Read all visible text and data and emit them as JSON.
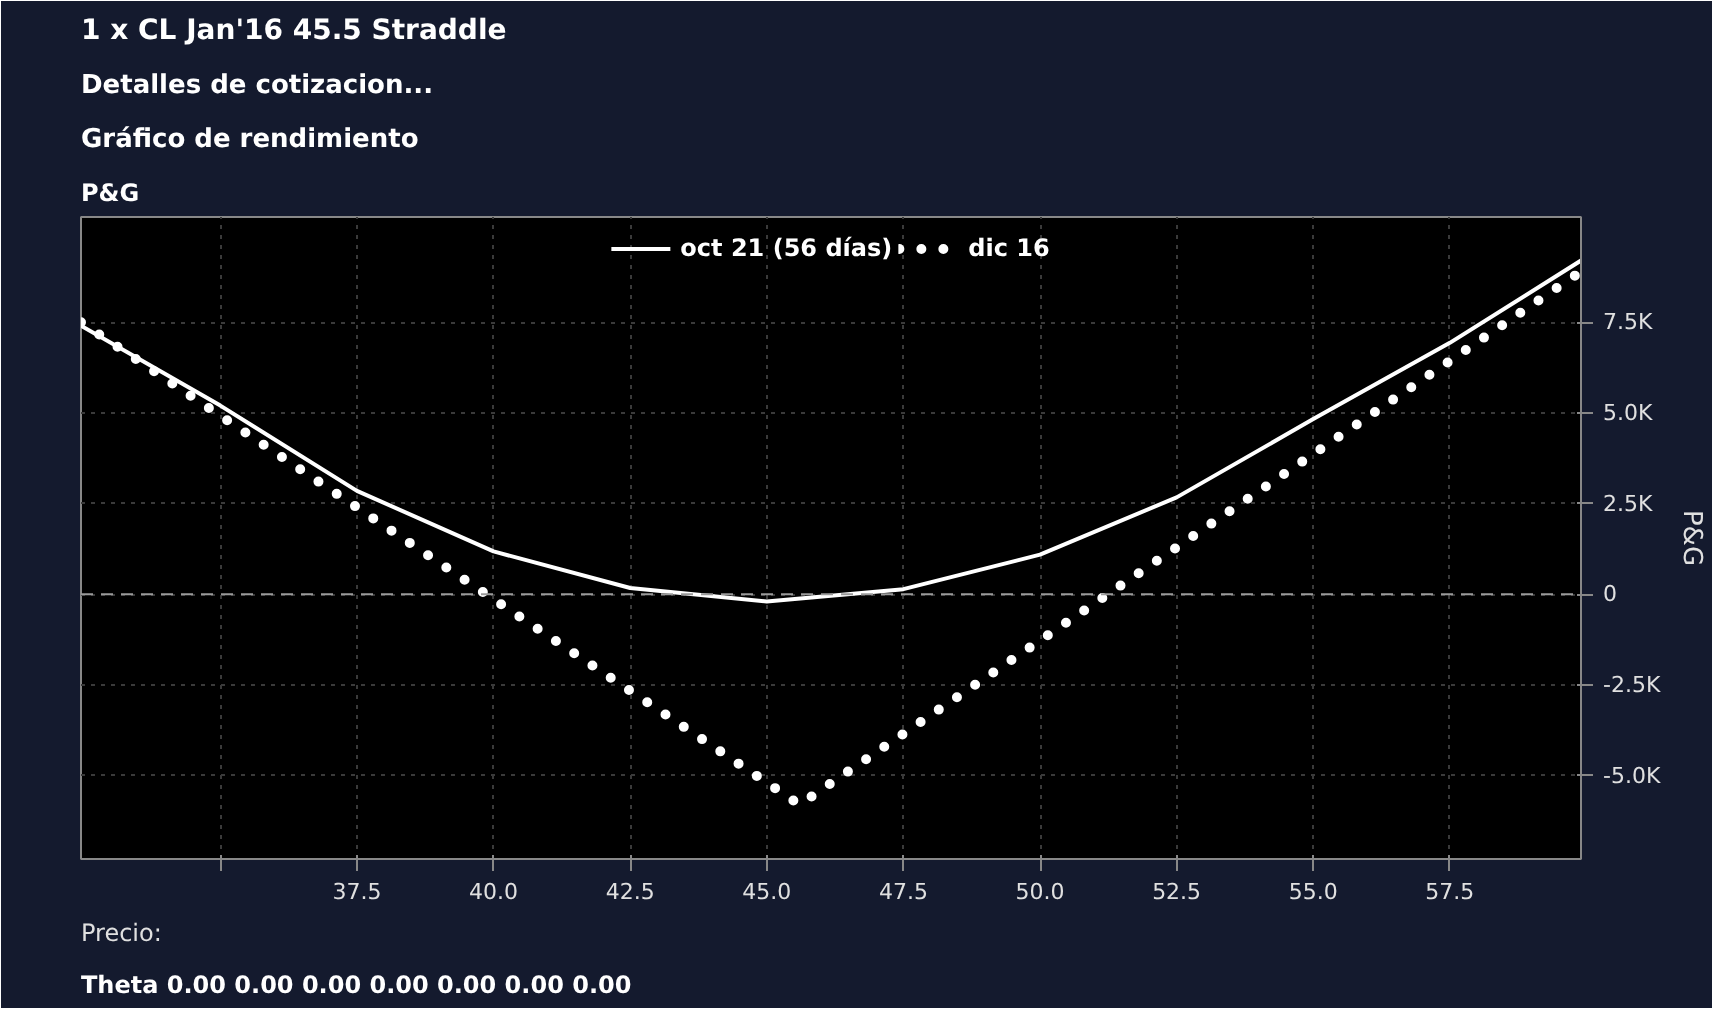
{
  "chart_data": {
    "type": "line",
    "title": "1 x CL Jan'16 45.5 Straddle",
    "subtitle": "Gráfico de rendimiento",
    "xlabel": "Precio:",
    "ylabel": "P&G",
    "annotations": [
      "Detalles de cotizacion...",
      "P&G",
      "Theta   0.00   0.00   0.00   0.00   0.00   0.00   0.00"
    ],
    "series": [
      {
        "name": "oct 21 (56 días)",
        "color": "#ffffff",
        "line_style": "solid",
        "x": [
          32.45,
          35,
          37.5,
          40,
          42.5,
          45,
          47.5,
          50,
          52.5,
          55,
          57.5,
          59.9
        ],
        "values": [
          7400,
          5200,
          2850,
          1180,
          170,
          -200,
          140,
          1090,
          2670,
          4830,
          6930,
          9200
        ]
      },
      {
        "name": "dic 16",
        "color": "#ffffff",
        "line_style": "dotted",
        "x": [
          32.45,
          45.6,
          59.9
        ],
        "values": [
          7500,
          -5800,
          8900
        ]
      }
    ],
    "xlim": [
      32.45,
      59.9
    ],
    "ylim": [
      -7300,
      10400
    ],
    "xticks": [
      {
        "value": 35,
        "label": null
      },
      37.5,
      {
        "value": 40,
        "label": "40.0"
      },
      42.5,
      {
        "value": 45,
        "label": "45.0"
      },
      47.5,
      {
        "value": 50,
        "label": "50.0"
      },
      52.5,
      {
        "value": 55,
        "label": "55.0"
      },
      57.5
    ],
    "yticks": [
      {
        "value": -5000,
        "label": "-5.0K"
      },
      {
        "value": -2500,
        "label": "-2.5K"
      },
      0,
      {
        "value": 2500,
        "label": "2.5K"
      },
      {
        "value": 5000,
        "label": "5.0K"
      },
      {
        "value": 7500,
        "label": "7.5K"
      }
    ],
    "ref_lines": [
      {
        "axis": "y",
        "value": 0,
        "color": "#9a9a9a",
        "line_style": "dashed"
      }
    ],
    "grid": true,
    "legend": "top",
    "marker": "none"
  }
}
